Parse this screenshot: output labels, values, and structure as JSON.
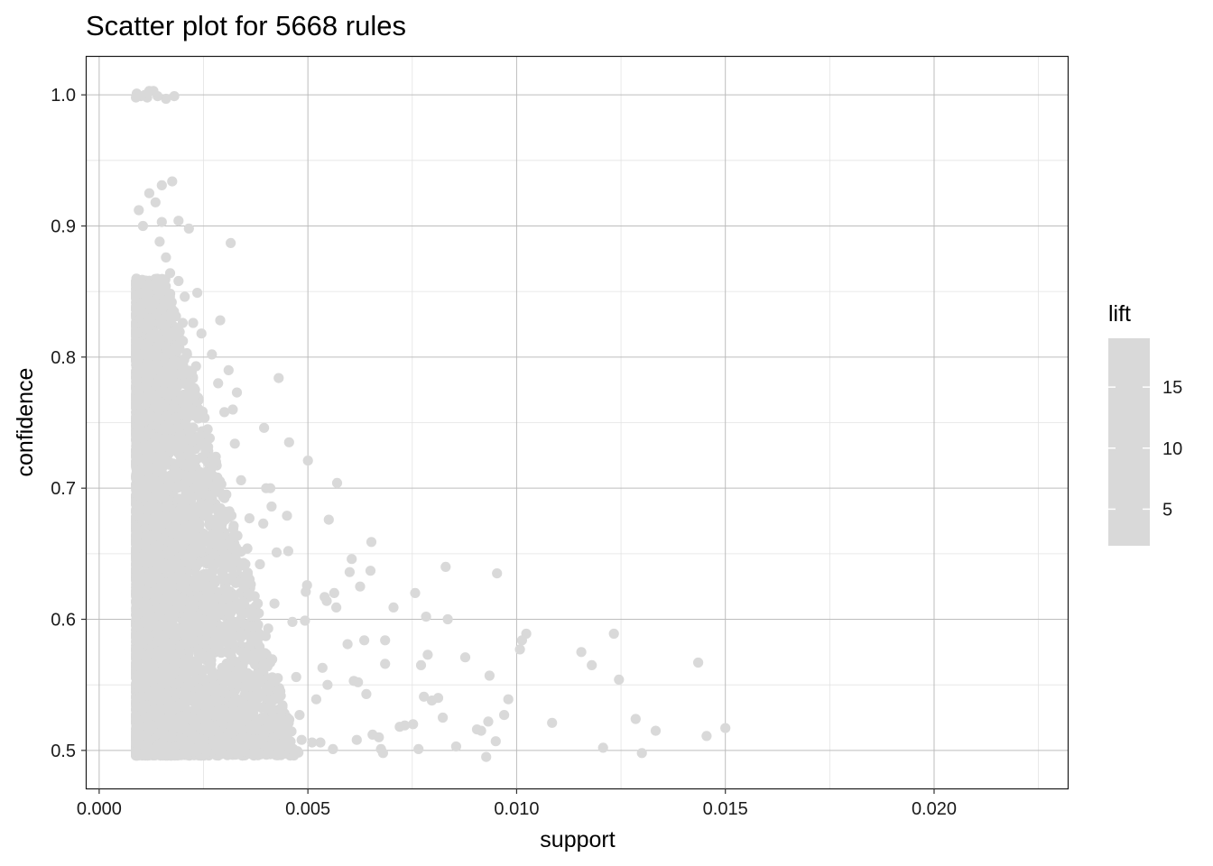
{
  "chart_data": {
    "type": "scatter",
    "title": "Scatter plot for 5668 rules",
    "xlabel": "support",
    "ylabel": "confidence",
    "xlim": [
      -0.0003,
      0.0232
    ],
    "ylim": [
      0.471,
      1.029
    ],
    "x_ticks": [
      0.0,
      0.005,
      0.01,
      0.015,
      0.02
    ],
    "x_tick_labels": [
      "0.000",
      "0.005",
      "0.010",
      "0.015",
      "0.020"
    ],
    "y_ticks": [
      0.5,
      0.6,
      0.7,
      0.8,
      0.9,
      1.0
    ],
    "y_tick_labels": [
      "0.5",
      "0.6",
      "0.7",
      "0.8",
      "0.9",
      "1.0"
    ],
    "grid": true,
    "point_color": "#d9d9d9",
    "legend": {
      "title": "lift",
      "position": "right",
      "ticks": [
        5,
        10,
        15
      ],
      "tick_labels": [
        "5",
        "10",
        "15"
      ],
      "range": [
        2,
        19
      ],
      "color": "#d9d9d9"
    },
    "points": [
      [
        0.00221,
        0.516
      ],
      [
        0.015,
        0.517
      ],
      [
        0.01455,
        0.511
      ],
      [
        0.01435,
        0.567
      ],
      [
        0.01333,
        0.515
      ],
      [
        0.013,
        0.498
      ],
      [
        0.01285,
        0.524
      ],
      [
        0.01245,
        0.554
      ],
      [
        0.01233,
        0.589
      ],
      [
        0.01207,
        0.502
      ],
      [
        0.0118,
        0.565
      ],
      [
        0.01155,
        0.575
      ],
      [
        0.01085,
        0.521
      ],
      [
        0.01023,
        0.589
      ],
      [
        0.01013,
        0.584
      ],
      [
        0.01008,
        0.577
      ],
      [
        0.0098,
        0.539
      ],
      [
        0.0097,
        0.527
      ],
      [
        0.00953,
        0.635
      ],
      [
        0.0095,
        0.507
      ],
      [
        0.00935,
        0.557
      ],
      [
        0.00932,
        0.522
      ],
      [
        0.00927,
        0.495
      ],
      [
        0.00915,
        0.515
      ],
      [
        0.00905,
        0.516
      ],
      [
        0.00877,
        0.571
      ],
      [
        0.00855,
        0.503
      ],
      [
        0.00835,
        0.6
      ],
      [
        0.0083,
        0.64
      ],
      [
        0.00823,
        0.525
      ],
      [
        0.00812,
        0.54
      ],
      [
        0.00797,
        0.538
      ],
      [
        0.00787,
        0.573
      ],
      [
        0.00783,
        0.602
      ],
      [
        0.00778,
        0.541
      ],
      [
        0.00771,
        0.565
      ],
      [
        0.00765,
        0.501
      ],
      [
        0.00757,
        0.62
      ],
      [
        0.00752,
        0.52
      ],
      [
        0.00732,
        0.519
      ],
      [
        0.0072,
        0.518
      ],
      [
        0.00705,
        0.609
      ],
      [
        0.00685,
        0.584
      ],
      [
        0.00685,
        0.566
      ],
      [
        0.0068,
        0.498
      ],
      [
        0.00675,
        0.501
      ],
      [
        0.0067,
        0.51
      ],
      [
        0.00655,
        0.512
      ],
      [
        0.00652,
        0.659
      ],
      [
        0.0065,
        0.637
      ],
      [
        0.0064,
        0.543
      ],
      [
        0.00635,
        0.584
      ],
      [
        0.00625,
        0.625
      ],
      [
        0.0062,
        0.552
      ],
      [
        0.00617,
        0.508
      ],
      [
        0.0061,
        0.553
      ],
      [
        0.00605,
        0.646
      ],
      [
        0.006,
        0.636
      ],
      [
        0.00595,
        0.581
      ],
      [
        0.0057,
        0.704
      ],
      [
        0.00568,
        0.609
      ],
      [
        0.00563,
        0.62
      ],
      [
        0.0056,
        0.501
      ],
      [
        0.0055,
        0.676
      ],
      [
        0.00547,
        0.55
      ],
      [
        0.00545,
        0.614
      ],
      [
        0.0054,
        0.617
      ],
      [
        0.00535,
        0.563
      ],
      [
        0.0053,
        0.506
      ],
      [
        0.0052,
        0.539
      ],
      [
        0.0051,
        0.506
      ],
      [
        0.005,
        0.721
      ],
      [
        0.00498,
        0.626
      ],
      [
        0.00495,
        0.621
      ],
      [
        0.00493,
        0.599
      ],
      [
        0.00485,
        0.508
      ],
      [
        0.0048,
        0.527
      ],
      [
        0.00472,
        0.556
      ],
      [
        0.00463,
        0.598
      ],
      [
        0.00455,
        0.735
      ],
      [
        0.00453,
        0.652
      ],
      [
        0.0045,
        0.679
      ],
      [
        0.0044,
        0.503
      ],
      [
        0.0043,
        0.784
      ],
      [
        0.00425,
        0.651
      ],
      [
        0.0042,
        0.612
      ],
      [
        0.00413,
        0.686
      ],
      [
        0.0041,
        0.7
      ],
      [
        0.00405,
        0.593
      ],
      [
        0.004,
        0.7
      ],
      [
        0.00395,
        0.746
      ],
      [
        0.00393,
        0.673
      ],
      [
        0.00385,
        0.642
      ],
      [
        0.0038,
        0.612
      ],
      [
        0.0037,
        0.594
      ],
      [
        0.0036,
        0.677
      ],
      [
        0.00355,
        0.654
      ],
      [
        0.0035,
        0.575
      ],
      [
        0.0034,
        0.706
      ],
      [
        0.0033,
        0.608
      ],
      [
        0.0033,
        0.773
      ],
      [
        0.00325,
        0.734
      ],
      [
        0.0032,
        0.76
      ],
      [
        0.00315,
        0.887
      ],
      [
        0.0031,
        0.79
      ],
      [
        0.003,
        0.758
      ],
      [
        0.0029,
        0.828
      ],
      [
        0.00285,
        0.78
      ],
      [
        0.0028,
        0.72
      ],
      [
        0.0027,
        0.802
      ],
      [
        0.0026,
        0.745
      ],
      [
        0.00255,
        0.734
      ],
      [
        0.00245,
        0.818
      ],
      [
        0.00235,
        0.849
      ],
      [
        0.00232,
        0.793
      ],
      [
        0.00225,
        0.826
      ],
      [
        0.0022,
        0.771
      ],
      [
        0.00215,
        0.898
      ],
      [
        0.0021,
        0.803
      ],
      [
        0.002,
        0.826
      ],
      [
        0.0019,
        0.904
      ],
      [
        0.0018,
        0.999
      ],
      [
        0.00175,
        0.934
      ],
      [
        0.0016,
        0.997
      ],
      [
        0.0015,
        0.931
      ],
      [
        0.0014,
        0.999
      ],
      [
        0.0013,
        1.003
      ],
      [
        0.0012,
        1.003
      ],
      [
        0.00115,
        0.998
      ],
      [
        0.0011,
        1.0
      ],
      [
        0.001,
        0.999
      ],
      [
        0.0009,
        1.001
      ],
      [
        0.00088,
        0.998
      ],
      [
        0.00095,
        0.912
      ],
      [
        0.00105,
        0.9
      ],
      [
        0.0012,
        0.925
      ],
      [
        0.00135,
        0.918
      ],
      [
        0.00145,
        0.888
      ],
      [
        0.0016,
        0.876
      ],
      [
        0.0015,
        0.903
      ],
      [
        0.0017,
        0.864
      ],
      [
        0.0019,
        0.858
      ],
      [
        0.00205,
        0.846
      ],
      [
        0.00196,
        0.812
      ],
      [
        0.00125,
        0.854
      ],
      [
        0.001,
        0.834
      ],
      [
        0.0009,
        0.838
      ]
    ],
    "dense_cloud": {
      "support_range": [
        0.00088,
        0.0048
      ],
      "confidence_range": [
        0.496,
        0.86
      ],
      "count": 5000
    }
  }
}
